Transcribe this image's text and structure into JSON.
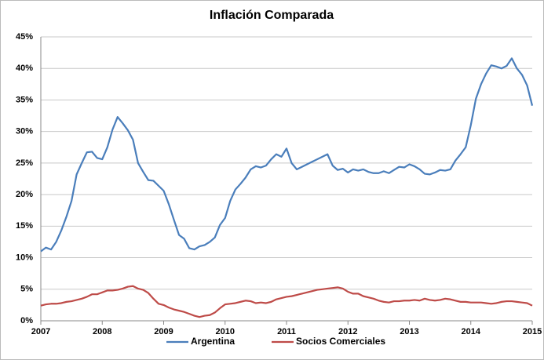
{
  "chart_data": {
    "type": "line",
    "title": "Inflación Comparada",
    "x": [
      2007.0,
      2007.083,
      2007.167,
      2007.25,
      2007.333,
      2007.417,
      2007.5,
      2007.583,
      2007.667,
      2007.75,
      2007.833,
      2007.917,
      2008.0,
      2008.083,
      2008.167,
      2008.25,
      2008.333,
      2008.417,
      2008.5,
      2008.583,
      2008.667,
      2008.75,
      2008.833,
      2008.917,
      2009.0,
      2009.083,
      2009.167,
      2009.25,
      2009.333,
      2009.417,
      2009.5,
      2009.583,
      2009.667,
      2009.75,
      2009.833,
      2009.917,
      2010.0,
      2010.083,
      2010.167,
      2010.25,
      2010.333,
      2010.417,
      2010.5,
      2010.583,
      2010.667,
      2010.75,
      2010.833,
      2010.917,
      2011.0,
      2011.083,
      2011.167,
      2011.25,
      2011.333,
      2011.417,
      2011.5,
      2011.583,
      2011.667,
      2011.75,
      2011.833,
      2011.917,
      2012.0,
      2012.083,
      2012.167,
      2012.25,
      2012.333,
      2012.417,
      2012.5,
      2012.583,
      2012.667,
      2012.75,
      2012.833,
      2012.917,
      2013.0,
      2013.083,
      2013.167,
      2013.25,
      2013.333,
      2013.417,
      2013.5,
      2013.583,
      2013.667,
      2013.75,
      2013.833,
      2013.917,
      2014.0,
      2014.083,
      2014.167,
      2014.25,
      2014.333,
      2014.417,
      2014.5,
      2014.583,
      2014.667,
      2014.75,
      2014.833,
      2014.917,
      2015.0
    ],
    "series": [
      {
        "name": "Argentina",
        "color": "#4a7ebb",
        "values": [
          11.0,
          11.6,
          11.3,
          12.5,
          14.3,
          16.5,
          19.0,
          23.2,
          25.0,
          26.7,
          26.8,
          25.8,
          25.6,
          27.5,
          30.3,
          32.3,
          31.3,
          30.2,
          28.7,
          25.0,
          23.6,
          22.3,
          22.2,
          21.4,
          20.6,
          18.5,
          16.0,
          13.6,
          13.0,
          11.5,
          11.3,
          11.8,
          12.0,
          12.5,
          13.2,
          15.2,
          16.3,
          19.0,
          20.8,
          21.7,
          22.7,
          24.0,
          24.5,
          24.3,
          24.6,
          25.6,
          26.4,
          26.0,
          27.3,
          25.0,
          24.0,
          24.4,
          24.8,
          25.2,
          25.6,
          26.0,
          26.4,
          24.6,
          23.9,
          24.1,
          23.5,
          24.0,
          23.8,
          24.0,
          23.6,
          23.4,
          23.4,
          23.7,
          23.4,
          23.9,
          24.4,
          24.3,
          24.8,
          24.5,
          24.0,
          23.3,
          23.2,
          23.5,
          23.9,
          23.8,
          24.0,
          25.4,
          26.4,
          27.5,
          31.0,
          35.2,
          37.5,
          39.2,
          40.5,
          40.3,
          40.0,
          40.4,
          41.6,
          40.0,
          39.0,
          37.3,
          34.1
        ]
      },
      {
        "name": "Socios Comerciales",
        "color": "#be4b48",
        "values": [
          2.4,
          2.6,
          2.7,
          2.7,
          2.8,
          3.0,
          3.1,
          3.3,
          3.5,
          3.8,
          4.2,
          4.2,
          4.5,
          4.8,
          4.8,
          4.9,
          5.1,
          5.4,
          5.5,
          5.1,
          4.9,
          4.4,
          3.5,
          2.7,
          2.5,
          2.1,
          1.8,
          1.6,
          1.4,
          1.1,
          0.8,
          0.6,
          0.8,
          0.9,
          1.3,
          2.0,
          2.6,
          2.7,
          2.8,
          3.0,
          3.2,
          3.1,
          2.8,
          2.9,
          2.8,
          3.0,
          3.4,
          3.6,
          3.8,
          3.9,
          4.1,
          4.3,
          4.5,
          4.7,
          4.9,
          5.0,
          5.1,
          5.2,
          5.3,
          5.1,
          4.6,
          4.3,
          4.3,
          3.9,
          3.7,
          3.5,
          3.2,
          3.0,
          2.9,
          3.1,
          3.1,
          3.2,
          3.2,
          3.3,
          3.2,
          3.5,
          3.3,
          3.2,
          3.3,
          3.5,
          3.4,
          3.2,
          3.0,
          3.0,
          2.9,
          2.9,
          2.9,
          2.8,
          2.7,
          2.8,
          3.0,
          3.1,
          3.1,
          3.0,
          2.9,
          2.8,
          2.4
        ]
      }
    ],
    "xlim": [
      2007,
      2015
    ],
    "xticks": [
      2007,
      2008,
      2009,
      2010,
      2011,
      2012,
      2013,
      2014,
      2015
    ],
    "ylim": [
      0,
      45
    ],
    "yticks": [
      {
        "value": 0,
        "label": "0%"
      },
      {
        "value": 5,
        "label": "5%"
      },
      {
        "value": 10,
        "label": "10%"
      },
      {
        "value": 15,
        "label": "15%"
      },
      {
        "value": 20,
        "label": "20%"
      },
      {
        "value": 25,
        "label": "25%"
      },
      {
        "value": 30,
        "label": "30%"
      },
      {
        "value": 35,
        "label": "35%"
      },
      {
        "value": 40,
        "label": "40%"
      },
      {
        "value": 45,
        "label": "45%"
      }
    ],
    "grid": true,
    "legend": "bottom"
  }
}
